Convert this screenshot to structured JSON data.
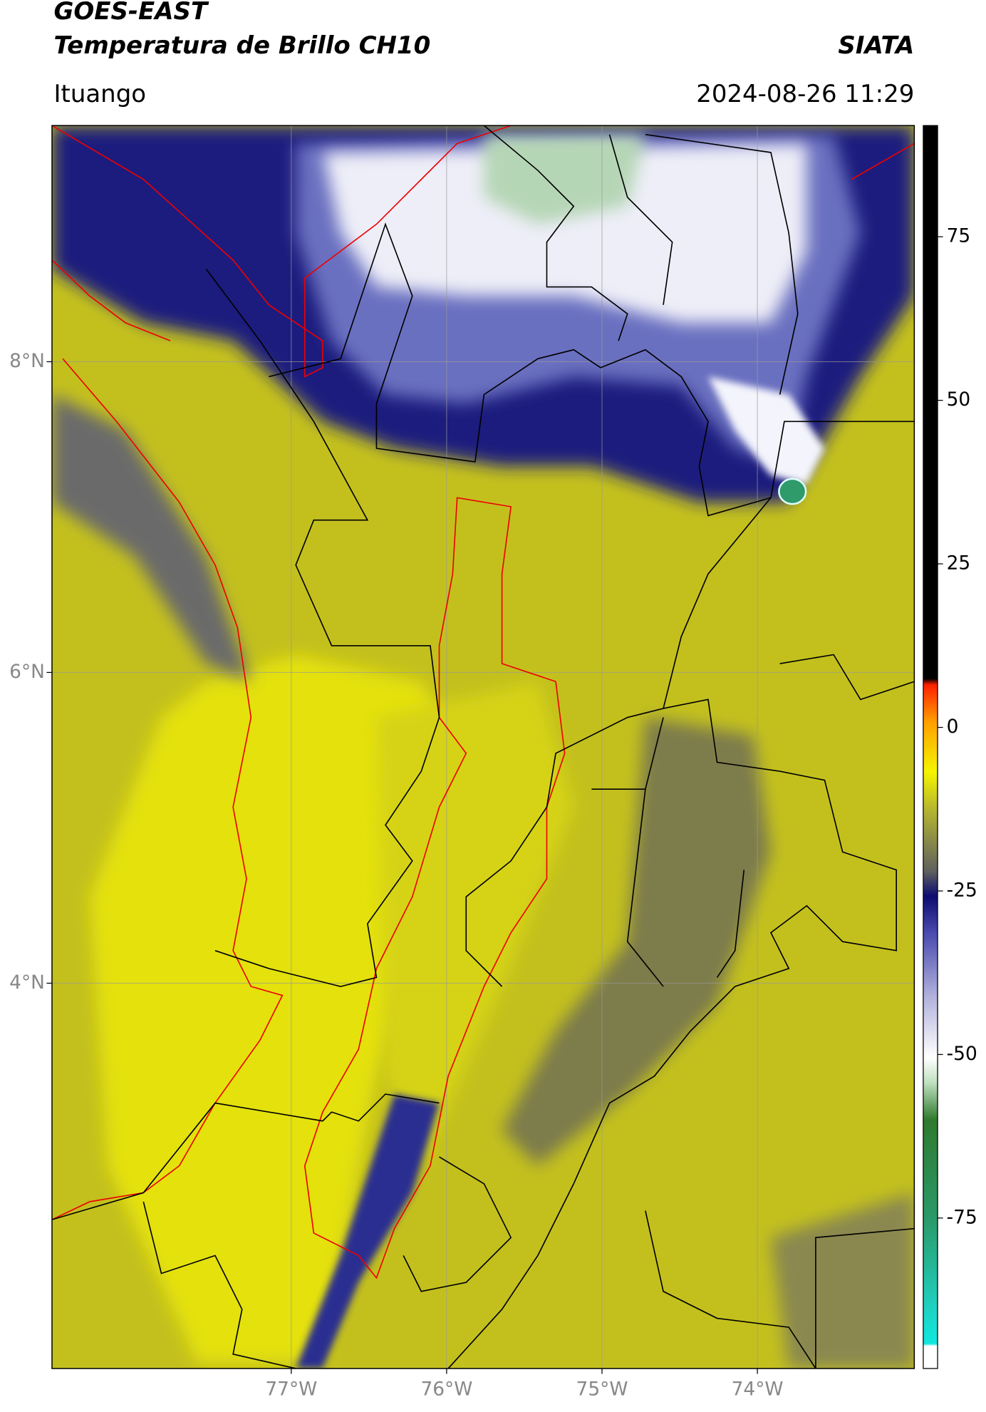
{
  "header": {
    "title": "GOES-EAST",
    "subtitle": "Temperatura de Brillo CH10",
    "brand": "SIATA",
    "location": "Ituango",
    "datetime": "2024-08-26 11:29"
  },
  "map": {
    "latlim": [
      1.52,
      9.52
    ],
    "lonlim": [
      -78.54,
      -72.99
    ],
    "lat_ticks": [
      {
        "value": 8,
        "label": "8°N"
      },
      {
        "value": 6,
        "label": "6°N"
      },
      {
        "value": 4,
        "label": "4°N"
      }
    ],
    "lon_ticks": [
      {
        "value": -77,
        "label": "77°W"
      },
      {
        "value": -76,
        "label": "76°W"
      },
      {
        "value": -75,
        "label": "75°W"
      },
      {
        "value": -74,
        "label": "74°W"
      }
    ]
  },
  "colorbar": {
    "lim": [
      -98,
      92
    ],
    "ticks": [
      75,
      50,
      25,
      0,
      -25,
      -50,
      -75
    ]
  }
}
